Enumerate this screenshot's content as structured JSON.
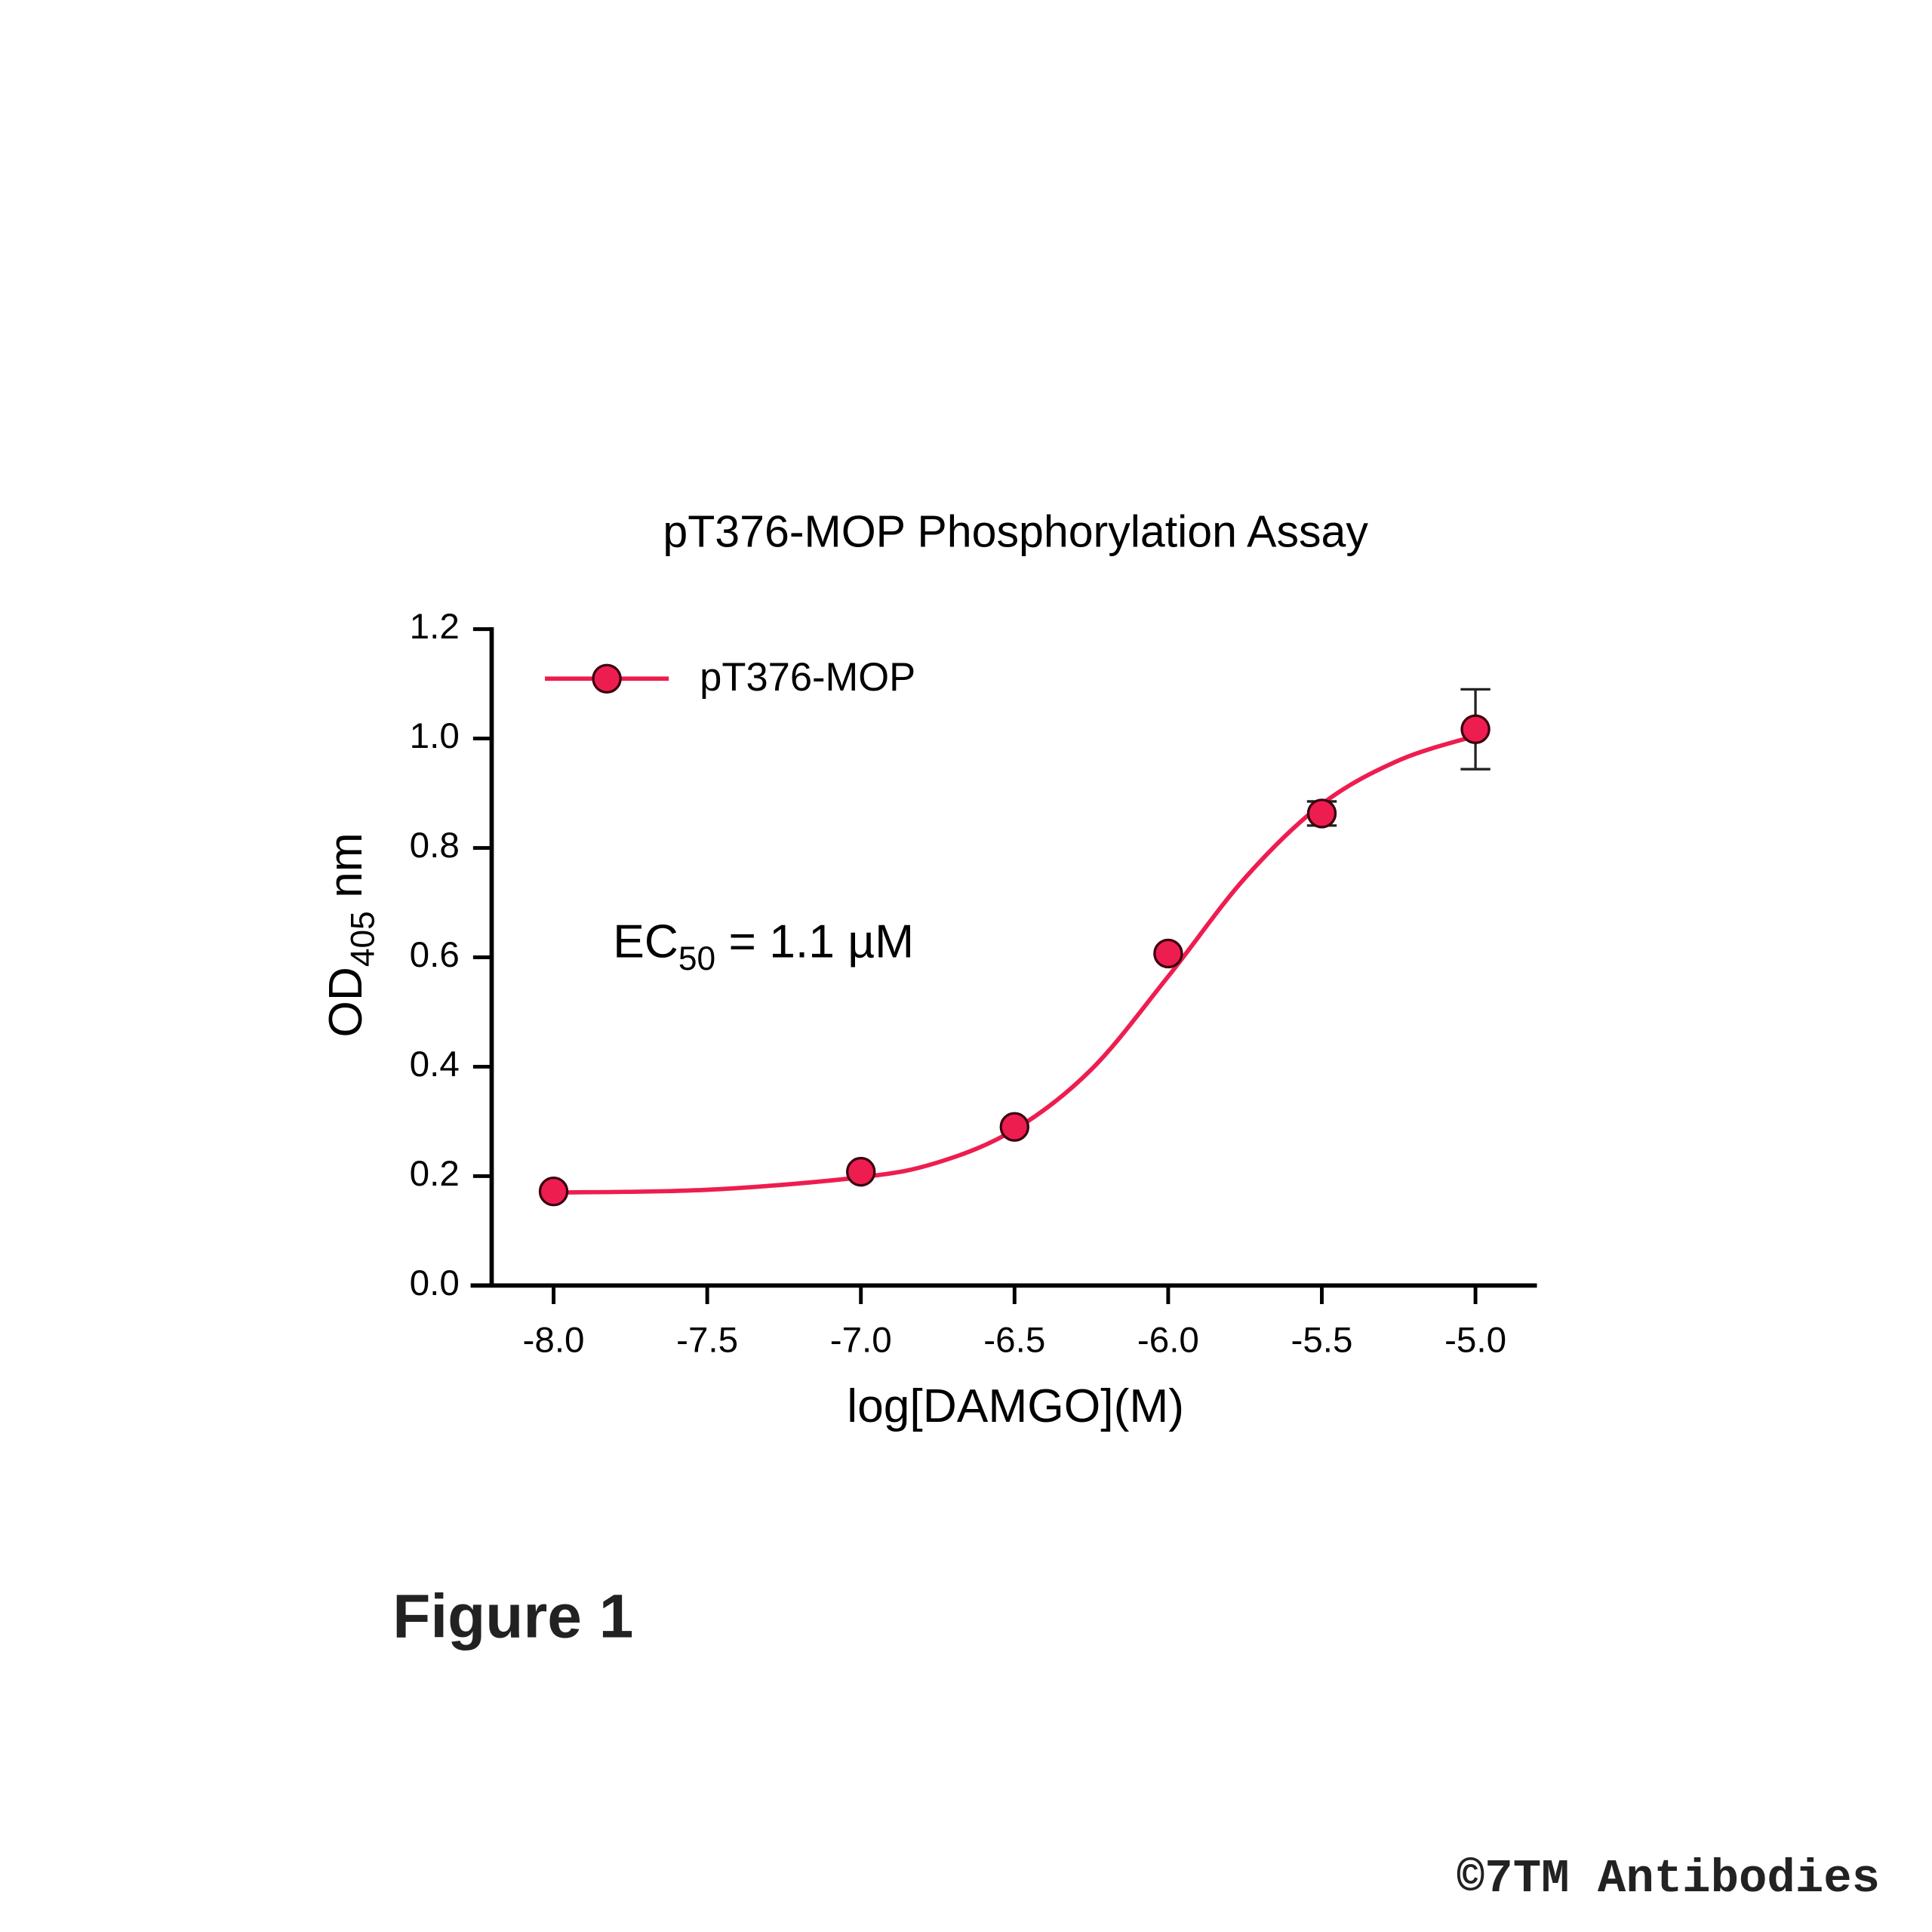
{
  "chart_data": {
    "type": "scatter",
    "title": "pT376-MOP Phosphorylation Assay",
    "x_label": "log[DAMGO](M)",
    "y_label": {
      "main": "OD",
      "sub": "405",
      "unit": " nm"
    },
    "annotation": {
      "main": "EC",
      "sub": "50",
      "rest": " = 1.1 µM"
    },
    "xlim": [
      -8.27,
      -4.8
    ],
    "ylim": [
      0,
      1.2
    ],
    "xticks": [
      {
        "value": -8.0,
        "label": "-8.0"
      },
      -7.5,
      {
        "value": -7.0,
        "label": "-7.0"
      },
      -6.5,
      {
        "value": -6.0,
        "label": "-6.0"
      },
      -5.5,
      {
        "value": -5.0,
        "label": "-5.0"
      }
    ],
    "yticks": [
      {
        "value": 0.0,
        "label": "0.0"
      },
      0.2,
      0.4,
      0.6,
      0.8,
      {
        "value": 1.0,
        "label": "1.0"
      },
      1.2
    ],
    "series": [
      {
        "name": "pT376-MOP",
        "color": "#ee1d4f",
        "x": [
          -8.0,
          -7.0,
          -6.5,
          -6.0,
          -5.5,
          -5.0
        ],
        "values": [
          0.172,
          0.208,
          0.29,
          0.607,
          0.863,
          1.017
        ],
        "errors": [
          0,
          0,
          0,
          0,
          0.022,
          0.073
        ]
      }
    ],
    "fit": {
      "x": [
        -8.0,
        -7.5,
        -7.0,
        -6.75,
        -6.5,
        -6.25,
        -6.0,
        -5.75,
        -5.5,
        -5.25,
        -5.0
      ],
      "values": [
        0.17,
        0.175,
        0.198,
        0.225,
        0.285,
        0.395,
        0.565,
        0.745,
        0.88,
        0.96,
        1.005
      ]
    },
    "legend": "top-left"
  },
  "figure_label": "Figure 1",
  "copyright": "©7TM Antibodies"
}
